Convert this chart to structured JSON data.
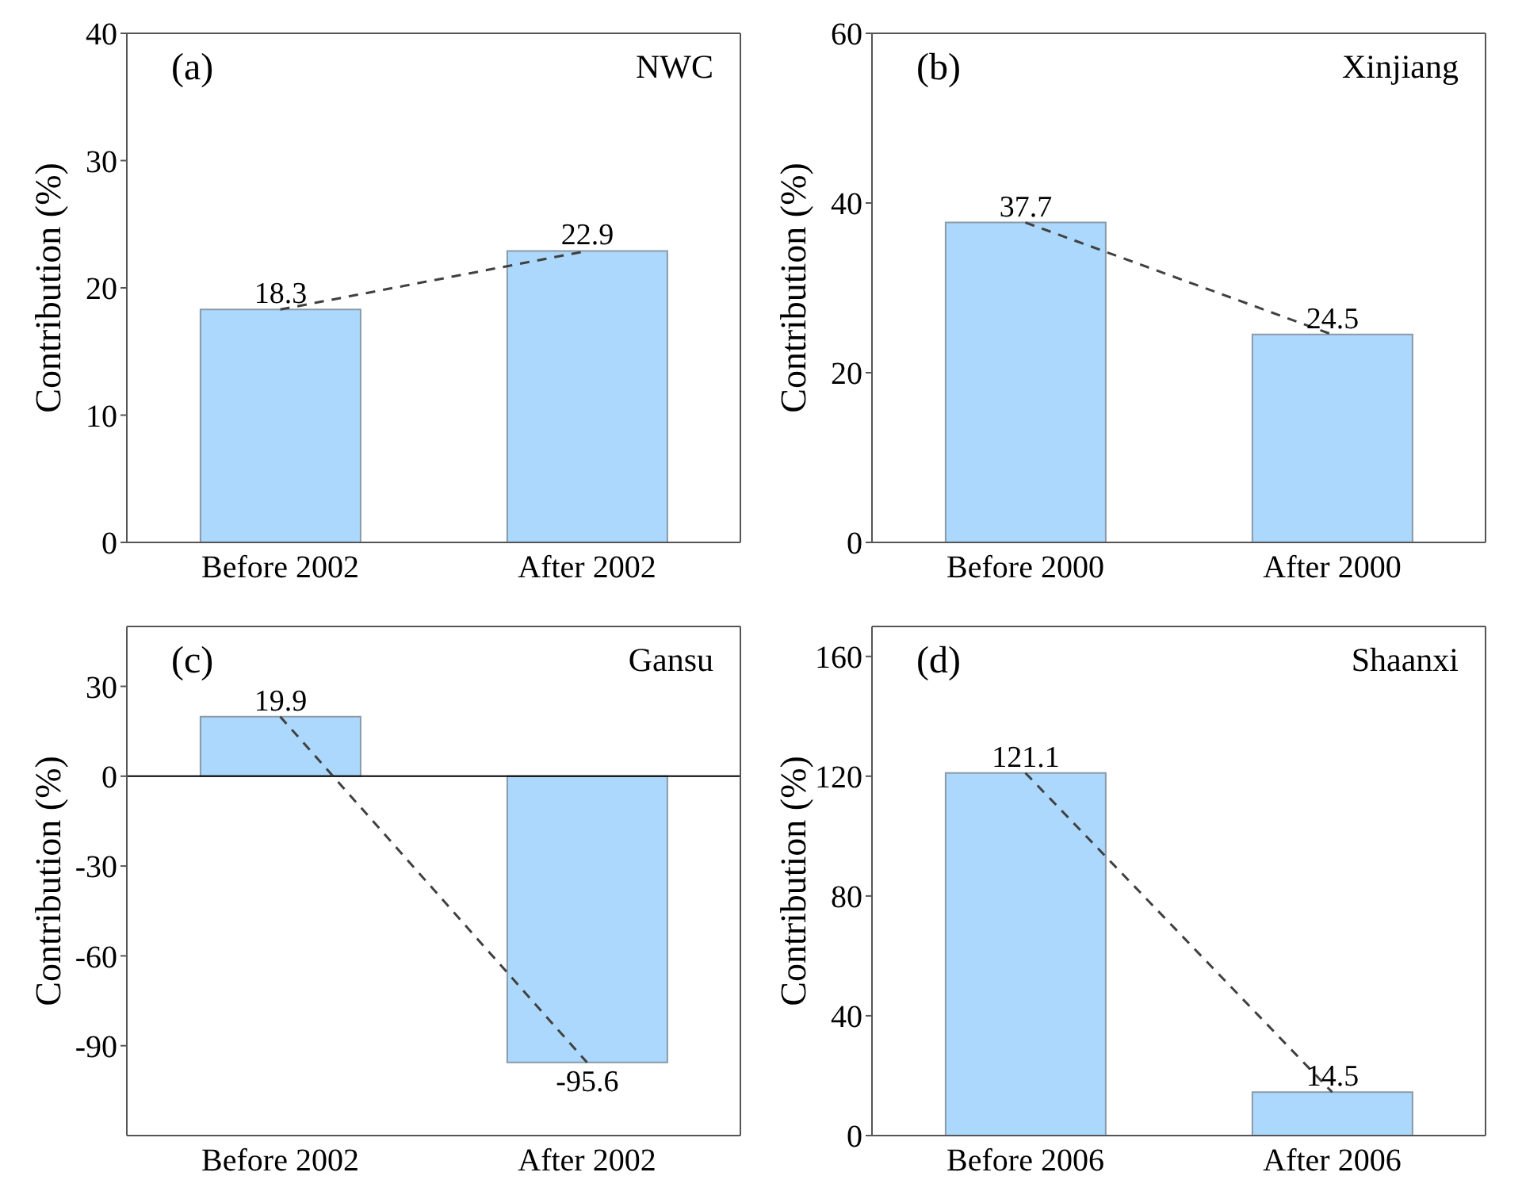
{
  "chart_data": [
    {
      "type": "bar",
      "ylabel": "Contribution (%)",
      "annotations": [
        "(a)",
        "NWC"
      ],
      "categories": [
        "Before 2002",
        "After 2002"
      ],
      "ylim": [
        0,
        40
      ],
      "yticks": [
        0,
        10,
        20,
        30,
        40
      ],
      "series": [
        {
          "color": "#abd8fc",
          "values": [
            18.3,
            22.9
          ],
          "value_labels": [
            "18.3",
            "22.9"
          ]
        },
        {
          "type": "line",
          "color": "#404040",
          "line_style": "dashed",
          "values": [
            18.3,
            22.9
          ]
        }
      ]
    },
    {
      "type": "bar",
      "ylabel": "Contribution (%)",
      "annotations": [
        "(b)",
        "Xinjiang"
      ],
      "categories": [
        "Before 2000",
        "After 2000"
      ],
      "ylim": [
        0,
        60
      ],
      "yticks": [
        0,
        20,
        40,
        60
      ],
      "series": [
        {
          "color": "#abd8fc",
          "values": [
            37.7,
            24.5
          ],
          "value_labels": [
            "37.7",
            "24.5"
          ]
        },
        {
          "type": "line",
          "color": "#404040",
          "line_style": "dashed",
          "values": [
            37.7,
            24.5
          ]
        }
      ]
    },
    {
      "type": "bar",
      "ylabel": "Contribution (%)",
      "annotations": [
        "(c)",
        "Gansu"
      ],
      "categories": [
        "Before 2002",
        "After 2002"
      ],
      "ylim": [
        -120,
        50
      ],
      "yticks": [
        -90,
        -60,
        -30,
        0,
        30
      ],
      "ref_lines": [
        {
          "axis": "y",
          "value": 0,
          "color": "#000000"
        }
      ],
      "series": [
        {
          "color": "#abd8fc",
          "values": [
            19.9,
            -95.6
          ],
          "value_labels": [
            "19.9",
            "-95.6"
          ]
        },
        {
          "type": "line",
          "color": "#404040",
          "line_style": "dashed",
          "values": [
            19.9,
            -95.6
          ]
        }
      ]
    },
    {
      "type": "bar",
      "ylabel": "Contribution (%)",
      "annotations": [
        "(d)",
        "Shaanxi"
      ],
      "categories": [
        "Before 2006",
        "After 2006"
      ],
      "ylim": [
        0,
        170
      ],
      "yticks": [
        0,
        40,
        80,
        120,
        160
      ],
      "series": [
        {
          "color": "#abd8fc",
          "values": [
            121.1,
            14.5
          ],
          "value_labels": [
            "121.1",
            "14.5"
          ]
        },
        {
          "type": "line",
          "color": "#404040",
          "line_style": "dashed",
          "values": [
            121.1,
            14.5
          ]
        }
      ]
    }
  ]
}
